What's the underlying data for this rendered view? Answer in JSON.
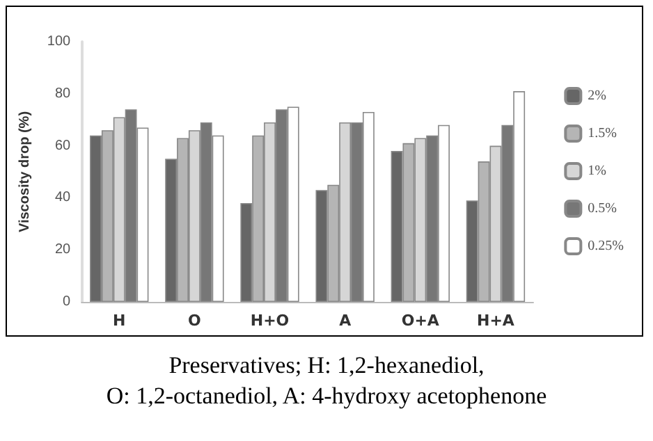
{
  "chart_data": {
    "type": "bar",
    "ylabel": "Viscosity drop (%)",
    "categories": [
      "H",
      "O",
      "H+O",
      "A",
      "O+A",
      "H+A"
    ],
    "series": [
      {
        "name": "2%",
        "color": "#666666",
        "values": [
          64,
          55,
          38,
          43,
          58,
          39
        ]
      },
      {
        "name": "1.5%",
        "color": "#b5b5b5",
        "values": [
          66,
          63,
          64,
          45,
          61,
          54
        ]
      },
      {
        "name": "1%",
        "color": "#d6d6d6",
        "values": [
          71,
          66,
          69,
          69,
          63,
          60
        ]
      },
      {
        "name": "0.5%",
        "color": "#777777",
        "values": [
          74,
          69,
          74,
          69,
          64,
          68
        ]
      },
      {
        "name": "0.25%",
        "color": "#ffffff",
        "values": [
          67,
          64,
          75,
          73,
          68,
          81
        ]
      }
    ],
    "ylim": [
      0,
      100
    ],
    "yticks": [
      0,
      20,
      40,
      60,
      80,
      100
    ],
    "grid": false,
    "legend": "right",
    "annotations": [
      "Preservatives; H: 1,2-hexanediol,\nO: 1,2-octanediol, A: 4-hydroxy acetophenone"
    ]
  }
}
